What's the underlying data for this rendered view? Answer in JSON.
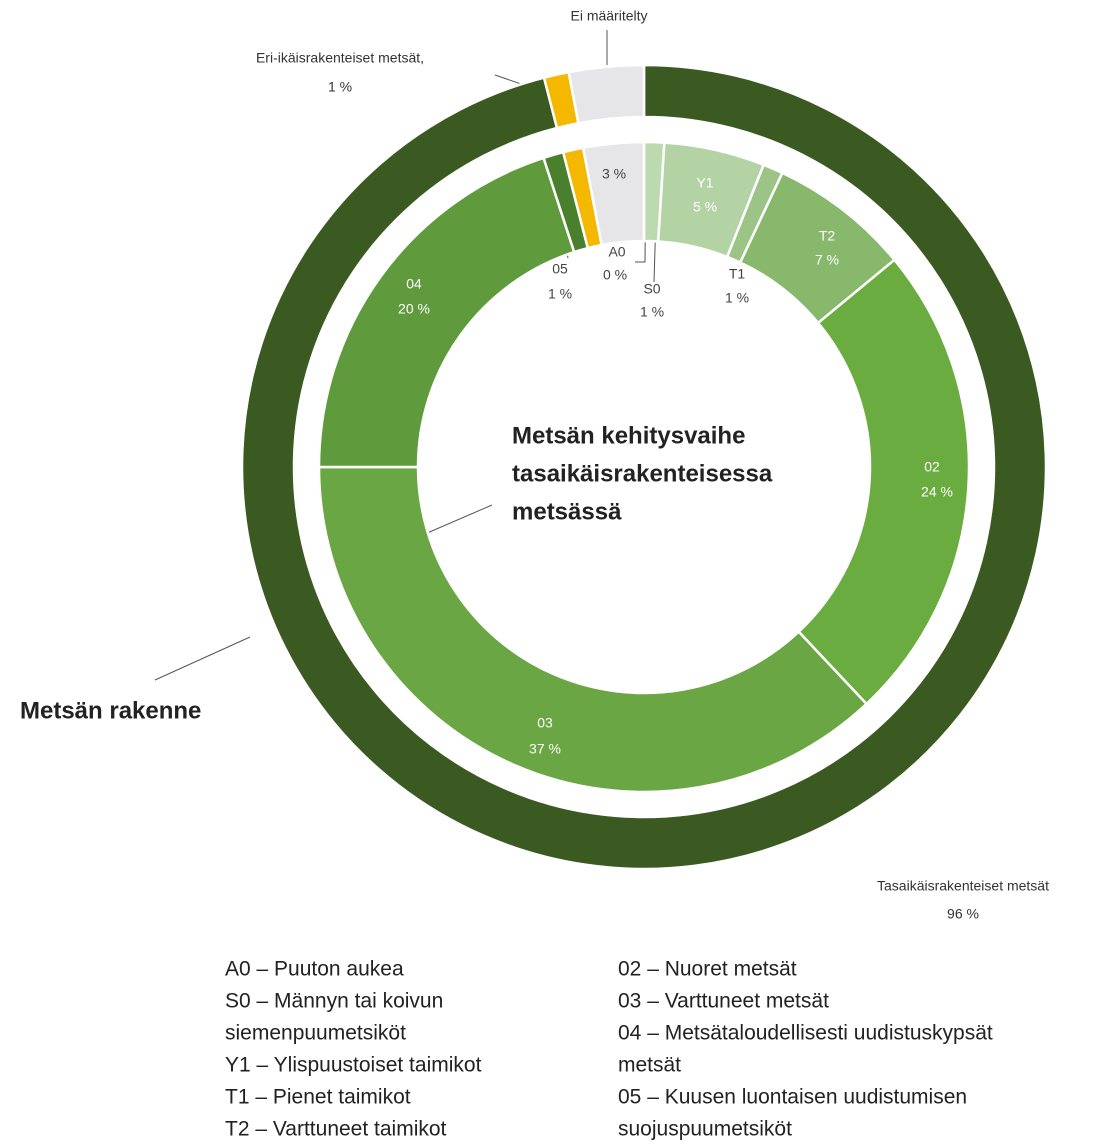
{
  "chart_data": {
    "type": "donut",
    "series": [
      {
        "name_lines": [
          "Metsän rakenne"
        ],
        "categories": [
          "Tasaikäisrakenteiset metsät",
          "Eri-ikäisrakenteiset metsät,",
          "Ei määritelty"
        ],
        "values": [
          96,
          1,
          3
        ],
        "value_labels": [
          "96 %",
          "1 %",
          null
        ],
        "colors": [
          "#3a5a22",
          "#f5b800",
          "#e6e6e8"
        ]
      },
      {
        "name_lines": [
          "Metsän kehitysvaihe",
          "tasaikäisrakenteisessa",
          "metsässä"
        ],
        "categories": [
          "A0",
          "S0",
          "Y1",
          "T1",
          "T2",
          "02",
          "03",
          "04",
          "05",
          null,
          null
        ],
        "values": [
          0,
          1,
          5,
          1,
          7,
          24,
          37,
          20,
          1,
          1,
          3
        ],
        "value_labels": [
          "0 %",
          "1 %",
          "5 %",
          "1 %",
          "7 %",
          "24 %",
          "37 %",
          "20 %",
          "1 %",
          null,
          "3 %"
        ],
        "colors": [
          "#cfe3c6",
          "#bcd9b0",
          "#b3d3a4",
          "#9cc487",
          "#88b86c",
          "#6aac3f",
          "#6aa643",
          "#5f9b3c",
          "#4a7f2e",
          "#f5b800",
          "#e6e6e8"
        ]
      }
    ],
    "legend_columns": [
      [
        "A0 – Puuton aukea",
        "S0 – Männyn tai koivun",
        "siemenpuumetsiköt",
        "Y1 – Ylispuustoiset taimikot",
        "T1 – Pienet taimikot",
        "T2 – Varttuneet taimikot"
      ],
      [
        "02 – Nuoret metsät",
        "03 – Varttuneet metsät",
        "04 – Metsätaloudellisesti uudistuskypsät",
        "metsät",
        "05 – Kuusen luontaisen uudistumisen",
        "suojuspuumetsiköt"
      ]
    ]
  }
}
